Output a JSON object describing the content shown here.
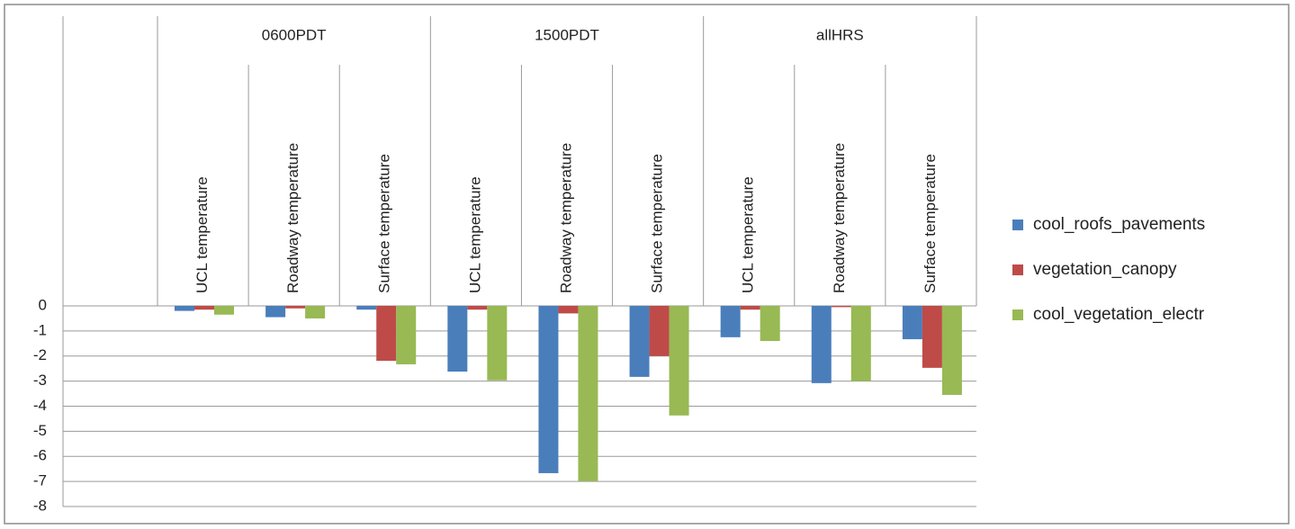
{
  "chart_data": {
    "type": "bar",
    "groups": [
      {
        "name": null,
        "categories": [
          null
        ]
      },
      {
        "name": "0600PDT",
        "categories": [
          "UCL temperature",
          "Roadway temperature",
          "Surface temperature"
        ]
      },
      {
        "name": "1500PDT",
        "categories": [
          "UCL temperature",
          "Roadway temperature",
          "Surface temperature"
        ]
      },
      {
        "name": "allHRS",
        "categories": [
          "UCL temperature",
          "Roadway temperature",
          "Surface temperature"
        ]
      }
    ],
    "series": [
      {
        "name": "cool_roofs_pavements",
        "color": "#4a7ebb",
        "values": [
          null,
          -0.2,
          -0.45,
          -0.15,
          -2.62,
          -6.67,
          -2.83,
          -1.25,
          -3.08,
          -1.33
        ]
      },
      {
        "name": "vegetation_canopy",
        "color": "#be4b48",
        "values": [
          null,
          -0.15,
          -0.1,
          -2.19,
          -0.15,
          -0.3,
          -2.0,
          -0.15,
          -0.05,
          -2.47
        ]
      },
      {
        "name": "cool_vegetation_electr",
        "color": "#98b954",
        "values": [
          null,
          -0.35,
          -0.5,
          -2.33,
          -2.97,
          -6.99,
          -4.37,
          -1.4,
          -3.0,
          -3.55
        ]
      }
    ],
    "ylim": [
      -8,
      0
    ],
    "yticks": [
      0,
      -1,
      -2,
      -3,
      -4,
      -5,
      -6,
      -7,
      -8
    ],
    "grid": true,
    "legend": "right"
  }
}
